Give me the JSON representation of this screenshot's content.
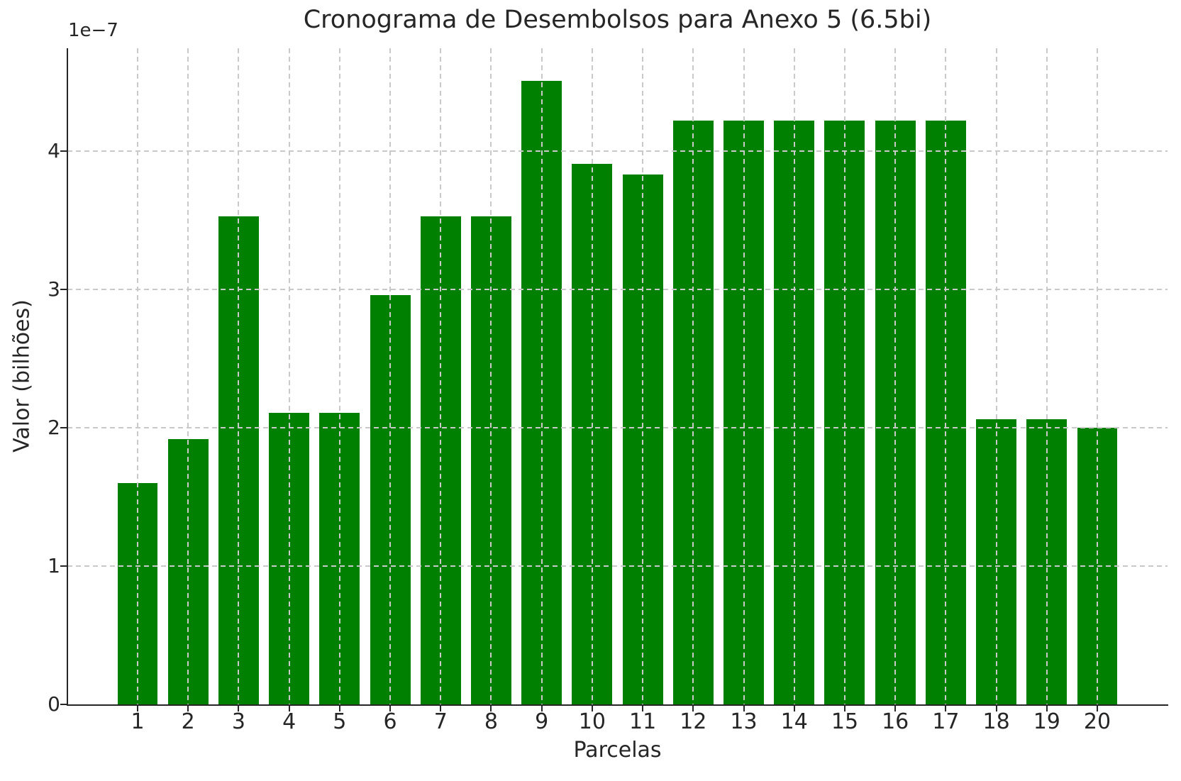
{
  "chart_data": {
    "type": "bar",
    "title": "Cronograma de Desembolsos para Anexo 5 (6.5bi)",
    "xlabel": "Parcelas",
    "ylabel": "Valor (bilhões)",
    "y_offset_label": "1e−7",
    "categories": [
      1,
      2,
      3,
      4,
      5,
      6,
      7,
      8,
      9,
      10,
      11,
      12,
      13,
      14,
      15,
      16,
      17,
      18,
      19,
      20
    ],
    "values": [
      1.6,
      1.92,
      3.53,
      2.11,
      2.11,
      2.96,
      3.53,
      3.53,
      4.51,
      3.91,
      3.83,
      4.22,
      4.22,
      4.22,
      4.22,
      4.22,
      4.22,
      2.06,
      2.06,
      2.0
    ],
    "value_scale": "1e-7",
    "yticks": [
      0,
      1,
      2,
      3,
      4
    ],
    "ylim": [
      0,
      4.744
    ],
    "xlim": [
      -0.39,
      21.39
    ],
    "bar_width": 0.8,
    "grid": true,
    "grid_style": "dashed",
    "legend": "none",
    "colors": {
      "bar": "#008000",
      "grid": "#c9c9c9",
      "text": "#262626",
      "spine": "#262626",
      "background": "#ffffff"
    }
  }
}
